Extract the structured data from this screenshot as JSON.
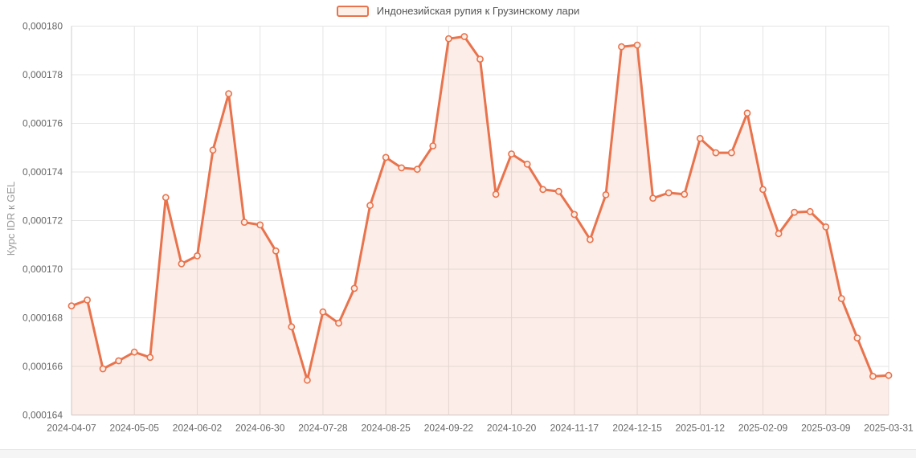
{
  "colors": {
    "line": "#e8734c",
    "area_fill": "rgba(232,115,76,0.13)",
    "marker_fill": "#fcefe8",
    "grid": "#e5e5e5",
    "axis": "#cccccc",
    "tick_text": "#666666",
    "axis_title_text": "#999999",
    "legend_text": "#555555"
  },
  "chart_data": {
    "type": "area",
    "title": "",
    "xlabel": "",
    "ylabel": "Курс IDR к GEL",
    "legend_position": "top-center",
    "grid": true,
    "ylim": [
      0.000164,
      0.00018
    ],
    "ytick_step": 2e-06,
    "ytick_labels": [
      "0,000180",
      "0,000178",
      "0,000176",
      "0,000174",
      "0,000172",
      "0,000170",
      "0,000168",
      "0,000166",
      "0,000164"
    ],
    "xtick_every": 4,
    "series": [
      {
        "name": "Индонезийская рупия к Грузинскому лари",
        "x": [
          "2024-04-07",
          "2024-04-14",
          "2024-04-21",
          "2024-04-28",
          "2024-05-05",
          "2024-05-12",
          "2024-05-19",
          "2024-05-26",
          "2024-06-02",
          "2024-06-09",
          "2024-06-16",
          "2024-06-23",
          "2024-06-30",
          "2024-07-07",
          "2024-07-14",
          "2024-07-21",
          "2024-07-28",
          "2024-08-04",
          "2024-08-11",
          "2024-08-18",
          "2024-08-25",
          "2024-09-01",
          "2024-09-08",
          "2024-09-15",
          "2024-09-22",
          "2024-09-29",
          "2024-10-06",
          "2024-10-13",
          "2024-10-20",
          "2024-10-27",
          "2024-11-03",
          "2024-11-10",
          "2024-11-17",
          "2024-11-24",
          "2024-12-01",
          "2024-12-08",
          "2024-12-15",
          "2024-12-22",
          "2024-12-29",
          "2025-01-05",
          "2025-01-12",
          "2025-01-19",
          "2025-01-26",
          "2025-02-02",
          "2025-02-09",
          "2025-02-16",
          "2025-02-23",
          "2025-03-02",
          "2025-03-09",
          "2025-03-16",
          "2025-03-23",
          "2025-03-30",
          "2025-03-31"
        ],
        "values": [
          0.00016849,
          0.00016873,
          0.0001659,
          0.00016623,
          0.00016659,
          0.00016637,
          0.00017295,
          0.00017022,
          0.00017055,
          0.0001749,
          0.00017722,
          0.00017193,
          0.00017182,
          0.00017075,
          0.00016763,
          0.00016543,
          0.00016824,
          0.00016778,
          0.00016921,
          0.00017262,
          0.0001746,
          0.00017417,
          0.00017411,
          0.00017507,
          0.00017948,
          0.00017957,
          0.00017864,
          0.00017308,
          0.00017474,
          0.00017432,
          0.00017328,
          0.0001732,
          0.00017225,
          0.00017122,
          0.00017306,
          0.00017915,
          0.00017922,
          0.00017292,
          0.00017314,
          0.00017308,
          0.00017538,
          0.00017479,
          0.00017479,
          0.00017642,
          0.00017328,
          0.00017146,
          0.00017234,
          0.00017237,
          0.00017174,
          0.00016879,
          0.00016717,
          0.00016559,
          0.00016563
        ]
      }
    ]
  }
}
